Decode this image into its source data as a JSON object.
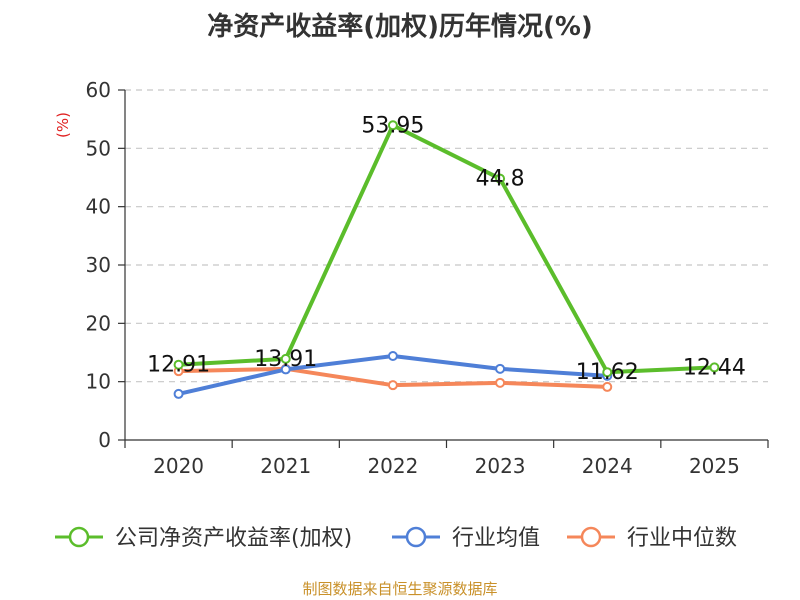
{
  "chart_data": {
    "type": "line",
    "title": "净资产收益率(加权)历年情况(%)",
    "ylabel": "(%)",
    "xlabel": "",
    "ylim": [
      0,
      60
    ],
    "yticks": [
      0,
      10,
      20,
      30,
      40,
      50,
      60
    ],
    "categories": [
      "2020",
      "2021",
      "2022",
      "2023",
      "2024",
      "2025"
    ],
    "grid": true,
    "legend_position": "bottom",
    "series": [
      {
        "name": "公司净资产收益率(加权)",
        "color": "#5bbd2b",
        "values": [
          12.91,
          13.91,
          53.95,
          44.8,
          11.62,
          12.44
        ],
        "labels": [
          "12.91",
          "13.91",
          "53.95",
          "44.8",
          "11.62",
          "12.44"
        ]
      },
      {
        "name": "行业均值",
        "color": "#4f7fd7",
        "values": [
          7.9,
          12.1,
          14.4,
          12.2,
          11.0,
          null
        ]
      },
      {
        "name": "行业中位数",
        "color": "#f5875a",
        "values": [
          11.8,
          12.2,
          9.4,
          9.8,
          9.1,
          null
        ]
      }
    ]
  },
  "footer": "制图数据来自恒生聚源数据库"
}
